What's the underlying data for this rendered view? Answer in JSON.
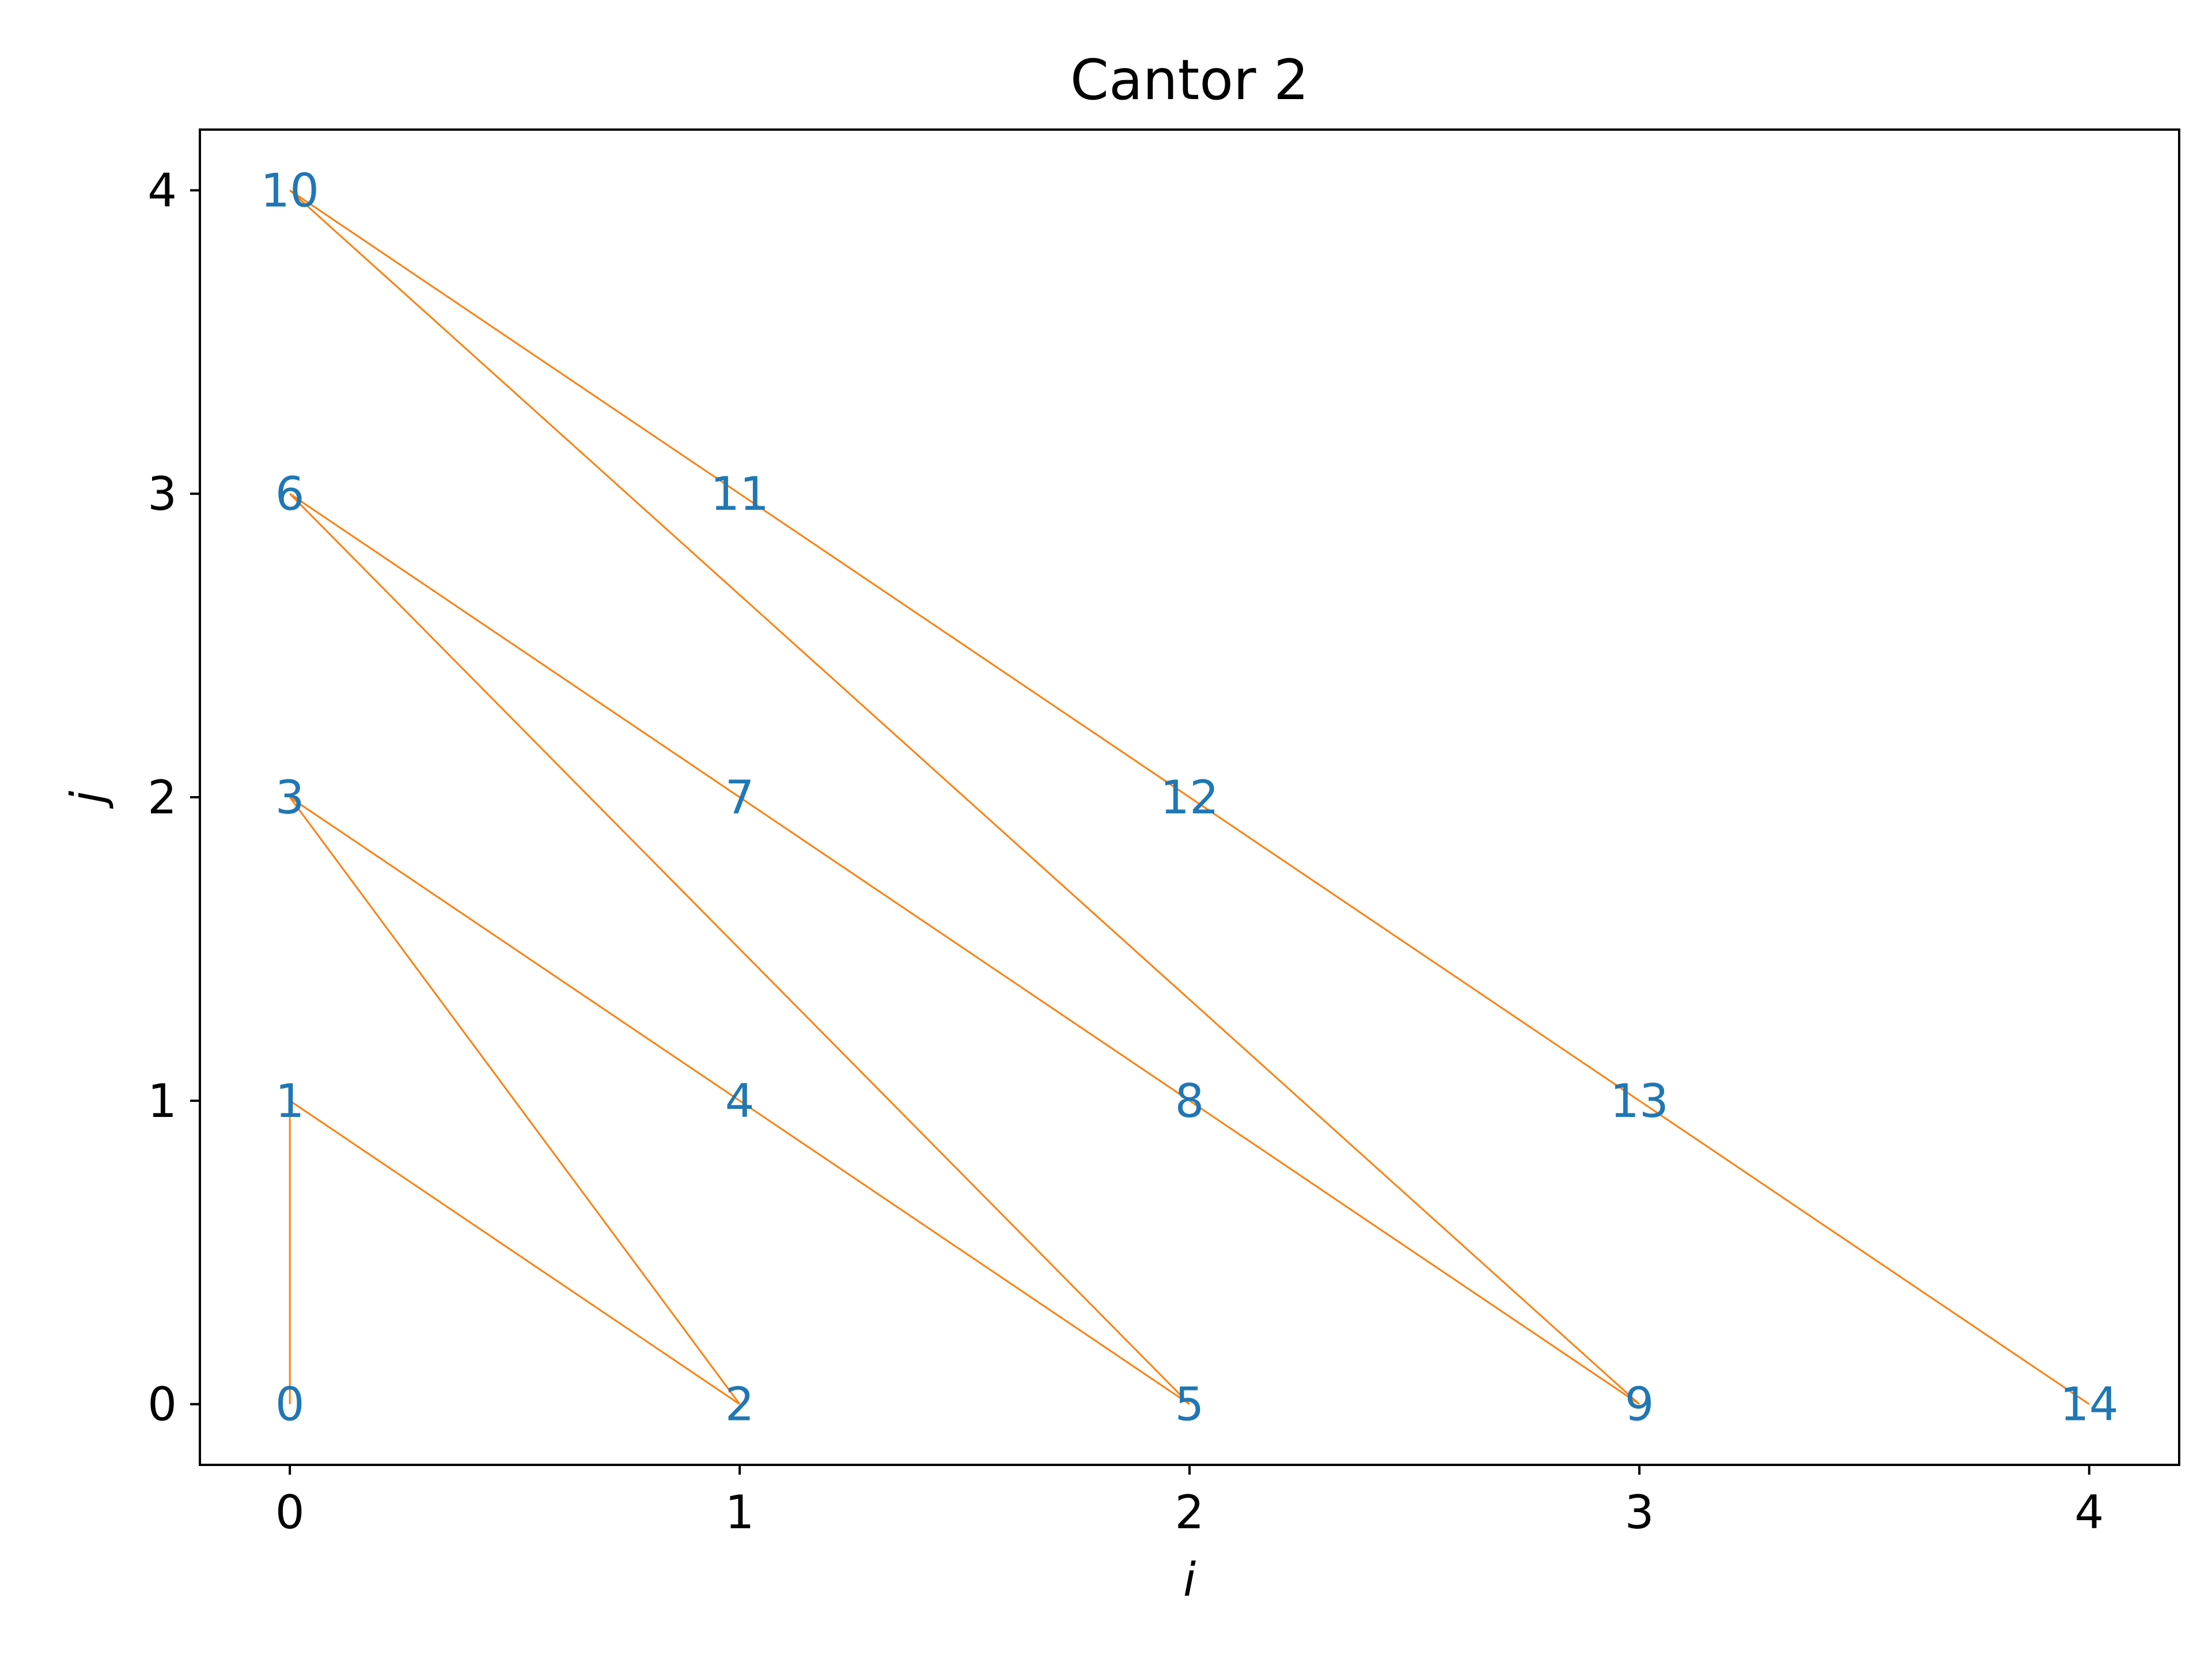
{
  "chart_data": {
    "type": "line",
    "title": "Cantor 2",
    "xlabel": "i",
    "ylabel": "j",
    "xlim": [
      -0.2,
      4.2
    ],
    "ylim": [
      -0.2,
      4.2
    ],
    "xticks": [
      0,
      1,
      2,
      3,
      4
    ],
    "yticks": [
      0,
      1,
      2,
      3,
      4
    ],
    "grid": false,
    "line_color": "#ff7f0e",
    "label_color": "#1f77b4",
    "points": [
      {
        "x": 0,
        "y": 0,
        "label": "0"
      },
      {
        "x": 0,
        "y": 1,
        "label": "1"
      },
      {
        "x": 1,
        "y": 0,
        "label": "2"
      },
      {
        "x": 0,
        "y": 2,
        "label": "3"
      },
      {
        "x": 1,
        "y": 1,
        "label": "4"
      },
      {
        "x": 2,
        "y": 0,
        "label": "5"
      },
      {
        "x": 0,
        "y": 3,
        "label": "6"
      },
      {
        "x": 1,
        "y": 2,
        "label": "7"
      },
      {
        "x": 2,
        "y": 1,
        "label": "8"
      },
      {
        "x": 3,
        "y": 0,
        "label": "9"
      },
      {
        "x": 0,
        "y": 4,
        "label": "10"
      },
      {
        "x": 1,
        "y": 3,
        "label": "11"
      },
      {
        "x": 2,
        "y": 2,
        "label": "12"
      },
      {
        "x": 3,
        "y": 1,
        "label": "13"
      },
      {
        "x": 4,
        "y": 0,
        "label": "14"
      }
    ]
  }
}
